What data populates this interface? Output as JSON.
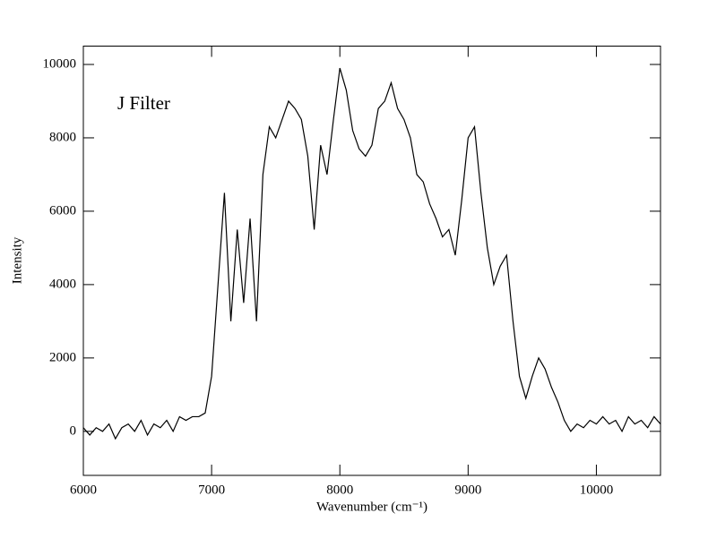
{
  "chart_data": {
    "type": "line",
    "annotation": "J Filter",
    "xlabel": "Wavenumber (cm⁻¹)",
    "ylabel": "Intensity",
    "x": [
      6000,
      6050,
      6100,
      6150,
      6200,
      6250,
      6300,
      6350,
      6400,
      6450,
      6500,
      6550,
      6600,
      6650,
      6700,
      6750,
      6800,
      6850,
      6900,
      6950,
      7000,
      7050,
      7100,
      7150,
      7200,
      7250,
      7300,
      7350,
      7400,
      7450,
      7500,
      7550,
      7600,
      7650,
      7700,
      7750,
      7800,
      7850,
      7900,
      7950,
      8000,
      8050,
      8100,
      8150,
      8200,
      8250,
      8300,
      8350,
      8400,
      8450,
      8500,
      8550,
      8600,
      8650,
      8700,
      8750,
      8800,
      8850,
      8900,
      8950,
      9000,
      9050,
      9100,
      9150,
      9200,
      9250,
      9300,
      9350,
      9400,
      9450,
      9500,
      9550,
      9600,
      9650,
      9700,
      9750,
      9800,
      9850,
      9900,
      9950,
      10000,
      10050,
      10100,
      10150,
      10200,
      10250,
      10300,
      10350,
      10400,
      10450,
      10500
    ],
    "series": [
      {
        "name": "J Filter",
        "color": "#000000",
        "values": [
          100,
          -100,
          100,
          0,
          200,
          -200,
          100,
          200,
          0,
          300,
          -100,
          200,
          100,
          300,
          0,
          400,
          300,
          400,
          400,
          500,
          1500,
          4000,
          6500,
          3000,
          5500,
          3500,
          5800,
          3000,
          7000,
          8300,
          8000,
          8500,
          9000,
          8800,
          8500,
          7500,
          5500,
          7800,
          7000,
          8500,
          9900,
          9300,
          8200,
          7700,
          7500,
          7800,
          8800,
          9000,
          9500,
          8800,
          8500,
          8000,
          7000,
          6800,
          6200,
          5800,
          5300,
          5500,
          4800,
          6300,
          8000,
          8300,
          6500,
          5000,
          4000,
          4500,
          4800,
          3000,
          1500,
          900,
          1500,
          2000,
          1700,
          1200,
          800,
          300,
          0,
          200,
          100,
          300,
          200,
          400,
          200,
          300,
          0,
          400,
          200,
          300,
          100,
          400,
          200
        ]
      }
    ],
    "xlim": [
      6000,
      10500
    ],
    "xticks": [
      6000,
      7000,
      8000,
      9000,
      10000
    ],
    "ylim": [
      -1200,
      10500
    ],
    "yticks": [
      0,
      2000,
      4000,
      6000,
      8000,
      10000
    ]
  }
}
